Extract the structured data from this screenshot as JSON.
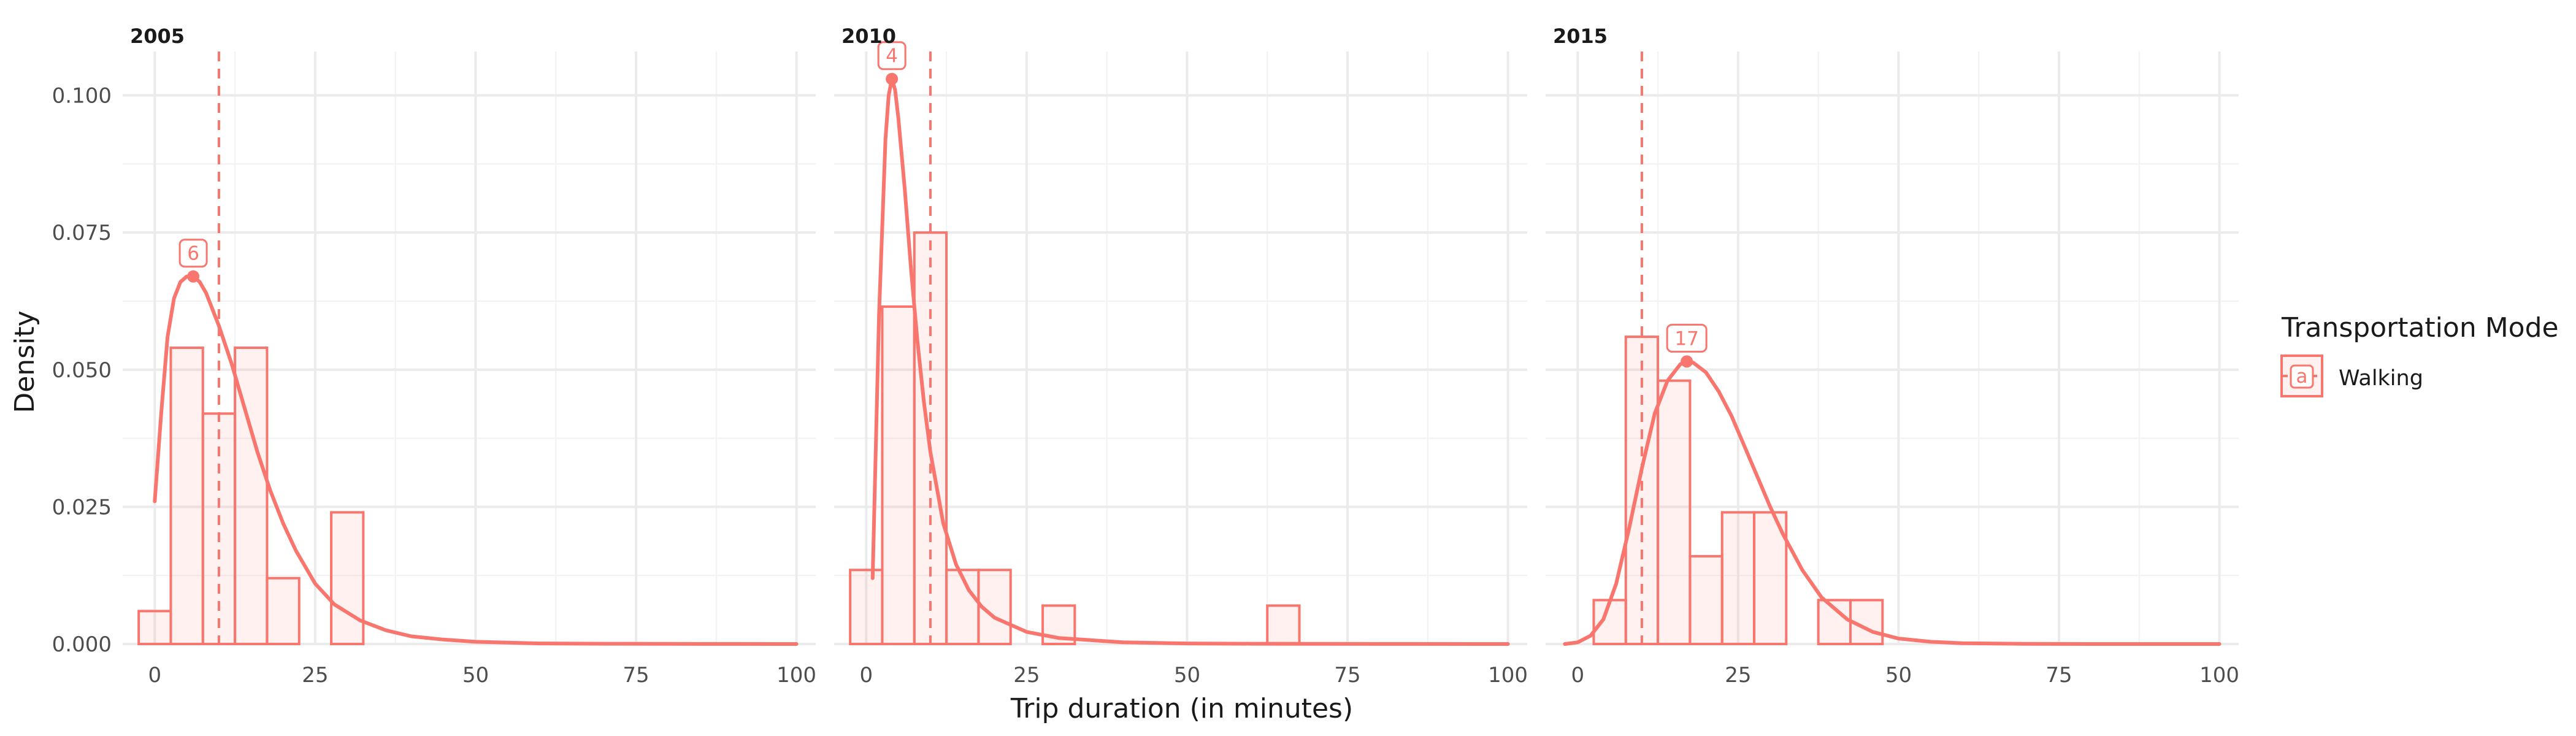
{
  "chart_data": {
    "type": "histogram-density-facets",
    "xlabel": "Trip duration (in minutes)",
    "ylabel": "Density",
    "xlim": [
      -5,
      103
    ],
    "ylim": [
      0,
      0.108
    ],
    "x_ticks": [
      0,
      25,
      50,
      75,
      100
    ],
    "x_tick_labels": [
      "0",
      "25",
      "50",
      "75",
      "100"
    ],
    "y_ticks": [
      0,
      0.025,
      0.05,
      0.075,
      0.1
    ],
    "y_tick_labels": [
      "0.000",
      "0.025",
      "0.050",
      "0.075",
      "0.100"
    ],
    "grid": true,
    "reference_line_x": 10,
    "legend": {
      "title": "Transportation Mode",
      "placement": "right",
      "entries": [
        {
          "label": "Walking",
          "key_glyph": "a"
        }
      ]
    },
    "series_color": "#f8766d",
    "bin_width": 5,
    "facets": [
      {
        "label": "2005",
        "bins": [
          {
            "x0": -2.5,
            "x1": 2.5,
            "density": 0.006
          },
          {
            "x0": 2.5,
            "x1": 7.5,
            "density": 0.054
          },
          {
            "x0": 7.5,
            "x1": 12.5,
            "density": 0.042
          },
          {
            "x0": 12.5,
            "x1": 17.5,
            "density": 0.054
          },
          {
            "x0": 17.5,
            "x1": 22.5,
            "density": 0.012
          },
          {
            "x0": 27.5,
            "x1": 32.5,
            "density": 0.024
          }
        ],
        "curve": {
          "x": [
            0,
            1,
            2,
            3,
            4,
            5,
            6,
            7,
            8,
            10,
            12,
            14,
            16,
            18,
            20,
            22,
            25,
            28,
            32,
            36,
            40,
            45,
            50,
            60,
            70,
            80,
            90,
            100
          ],
          "y": [
            0.026,
            0.042,
            0.056,
            0.063,
            0.066,
            0.067,
            0.067,
            0.066,
            0.064,
            0.058,
            0.051,
            0.043,
            0.035,
            0.028,
            0.022,
            0.017,
            0.011,
            0.0072,
            0.0043,
            0.0025,
            0.0014,
            0.0008,
            0.0004,
            0.0001,
            5e-05,
            2e-05,
            1e-05,
            0
          ]
        },
        "peak": {
          "x": 6,
          "y": 0.067,
          "label": "6"
        }
      },
      {
        "label": "2010",
        "bins": [
          {
            "x0": -2.5,
            "x1": 2.5,
            "density": 0.0135
          },
          {
            "x0": 2.5,
            "x1": 7.5,
            "density": 0.0615
          },
          {
            "x0": 7.5,
            "x1": 12.5,
            "density": 0.075
          },
          {
            "x0": 12.5,
            "x1": 17.5,
            "density": 0.0135
          },
          {
            "x0": 17.5,
            "x1": 22.5,
            "density": 0.0135
          },
          {
            "x0": 27.5,
            "x1": 32.5,
            "density": 0.007
          },
          {
            "x0": 62.5,
            "x1": 67.5,
            "density": 0.007
          }
        ],
        "curve": {
          "x": [
            1,
            2,
            3,
            3.5,
            4,
            4.5,
            5,
            6,
            7,
            8,
            9,
            10,
            12,
            14,
            16,
            18,
            20,
            25,
            30,
            40,
            50,
            60,
            80,
            100
          ],
          "y": [
            0.012,
            0.06,
            0.092,
            0.1,
            0.103,
            0.101,
            0.096,
            0.083,
            0.068,
            0.055,
            0.044,
            0.035,
            0.022,
            0.0145,
            0.0098,
            0.0068,
            0.0048,
            0.0022,
            0.0011,
            0.0003,
            0.0001,
            4e-05,
            1e-05,
            0
          ]
        },
        "peak": {
          "x": 4,
          "y": 0.103,
          "label": "4"
        }
      },
      {
        "label": "2015",
        "bins": [
          {
            "x0": 2.5,
            "x1": 7.5,
            "density": 0.008
          },
          {
            "x0": 7.5,
            "x1": 12.5,
            "density": 0.056
          },
          {
            "x0": 12.5,
            "x1": 17.5,
            "density": 0.048
          },
          {
            "x0": 17.5,
            "x1": 22.5,
            "density": 0.016
          },
          {
            "x0": 22.5,
            "x1": 27.5,
            "density": 0.024
          },
          {
            "x0": 27.5,
            "x1": 32.5,
            "density": 0.024
          },
          {
            "x0": 37.5,
            "x1": 42.5,
            "density": 0.008
          },
          {
            "x0": 42.5,
            "x1": 47.5,
            "density": 0.008
          }
        ],
        "curve": {
          "x": [
            -2,
            0,
            2,
            4,
            6,
            8,
            10,
            12,
            14,
            16,
            17,
            18,
            20,
            22,
            24,
            26,
            28,
            30,
            32,
            35,
            38,
            42,
            46,
            50,
            55,
            60,
            70,
            80,
            100
          ],
          "y": [
            0.0,
            0.0003,
            0.0015,
            0.0045,
            0.011,
            0.021,
            0.032,
            0.042,
            0.048,
            0.051,
            0.0515,
            0.0513,
            0.0495,
            0.046,
            0.0415,
            0.036,
            0.0305,
            0.025,
            0.02,
            0.0135,
            0.0085,
            0.0045,
            0.0022,
            0.001,
            0.0004,
            0.00015,
            2e-05,
            0.0,
            0.0
          ]
        },
        "peak": {
          "x": 17,
          "y": 0.0515,
          "label": "17"
        }
      }
    ]
  }
}
